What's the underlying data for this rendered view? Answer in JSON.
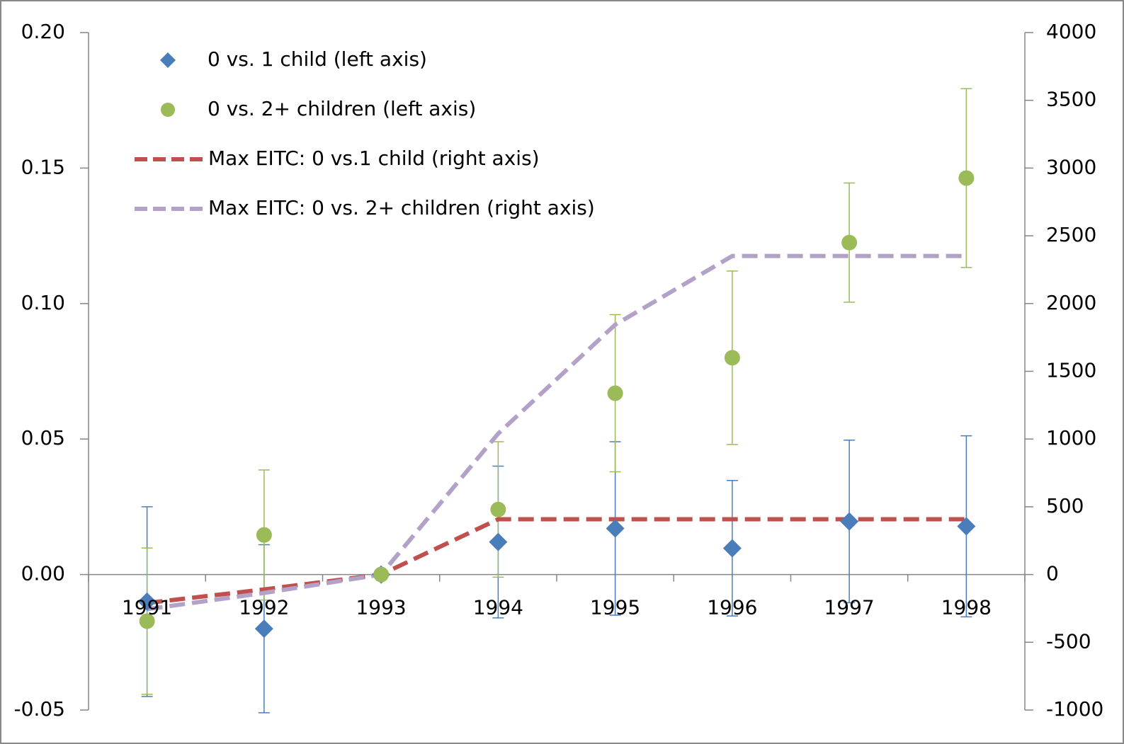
{
  "chart_data": {
    "type": "combo",
    "categories": [
      "1991",
      "1992",
      "1993",
      "1994",
      "1995",
      "1996",
      "1997",
      "1998"
    ],
    "ylim": [
      -0.05,
      0.2
    ],
    "yticks": [
      -0.05,
      {
        "value": 0,
        "label": "0.00"
      },
      0.05,
      {
        "value": 0.1,
        "label": "0.10"
      },
      0.15,
      {
        "value": 0.2,
        "label": "0.20"
      }
    ],
    "y2lim": [
      -1000,
      4000
    ],
    "y2ticks": [
      -1000,
      -500,
      0,
      500,
      1000,
      1500,
      2000,
      2500,
      3000,
      3500,
      4000
    ],
    "series": [
      {
        "name": "0 vs. 1 child (left axis)",
        "type": "scatter",
        "marker": "diamond",
        "color": "#4a7ebb",
        "values": [
          -0.01,
          -0.02,
          0.0,
          0.012,
          0.017,
          0.0097,
          0.0196,
          0.0178
        ],
        "errors": [
          0.035,
          0.031,
          null,
          0.028,
          0.032,
          0.025,
          0.03,
          0.0334
        ]
      },
      {
        "name": "0 vs. 2+ children (left axis)",
        "type": "scatter",
        "marker": "circle",
        "color": "#9bbb59",
        "values": [
          -0.0172,
          0.0146,
          0.0,
          0.024,
          0.0669,
          0.08,
          0.1225,
          0.1463
        ],
        "errors": [
          0.027,
          0.024,
          null,
          0.025,
          0.029,
          0.032,
          0.022,
          0.033
        ]
      },
      {
        "name": "Max EITC: 0 vs.1 child (right axis)",
        "type": "line",
        "axis": "y2",
        "color": "#c0504d",
        "values": [
          -210,
          -110,
          0,
          408,
          408,
          408,
          408,
          408
        ]
      },
      {
        "name": "Max EITC: 0 vs. 2+ children (right axis)",
        "type": "line",
        "axis": "y2",
        "color": "#b3a2c7",
        "values": [
          -256,
          -136,
          0,
          1040,
          1844,
          2351,
          2351,
          2351
        ]
      }
    ]
  }
}
